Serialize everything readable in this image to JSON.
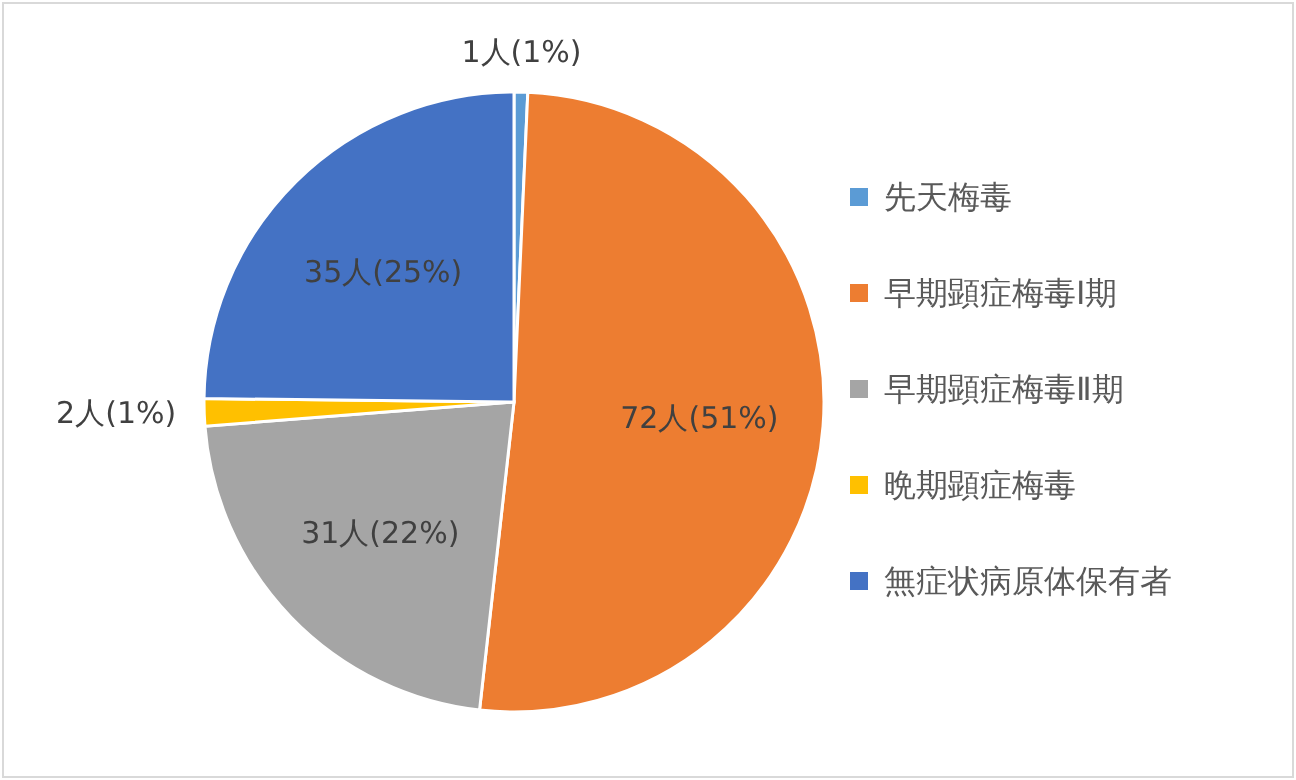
{
  "chart_data": {
    "type": "pie",
    "categories": [
      "先天梅毒",
      "早期顕症梅毒Ⅰ期",
      "早期顕症梅毒Ⅱ期",
      "晩期顕症梅毒",
      "無症状病原体保有者"
    ],
    "values": [
      1,
      72,
      31,
      2,
      35
    ],
    "value_labels": [
      "1人(1%)",
      "72人(51%)",
      "31人(22%)",
      "2人(1%)",
      "35人(25%)"
    ],
    "colors": [
      "#5b9bd5",
      "#ed7d31",
      "#a5a5a5",
      "#ffc000",
      "#4472c4"
    ],
    "legend": "right"
  }
}
